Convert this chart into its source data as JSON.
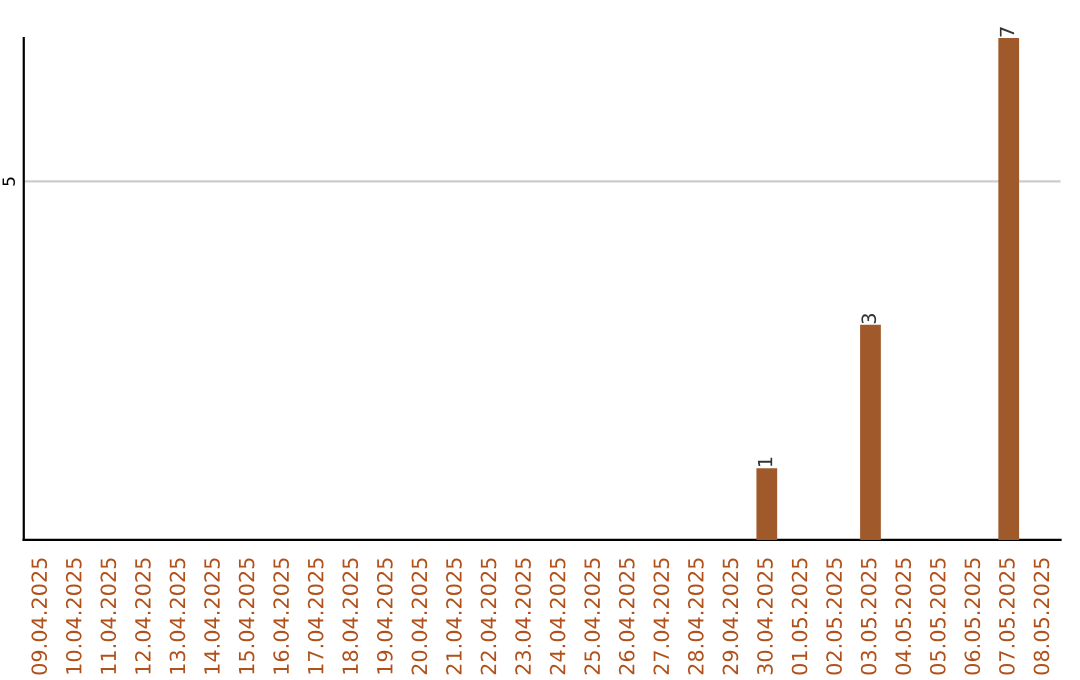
{
  "chart_data": {
    "type": "bar",
    "categories": [
      "09.04.2025",
      "10.04.2025",
      "11.04.2025",
      "12.04.2025",
      "13.04.2025",
      "14.04.2025",
      "15.04.2025",
      "16.04.2025",
      "17.04.2025",
      "18.04.2025",
      "19.04.2025",
      "20.04.2025",
      "21.04.2025",
      "22.04.2025",
      "23.04.2025",
      "24.04.2025",
      "25.04.2025",
      "26.04.2025",
      "27.04.2025",
      "28.04.2025",
      "29.04.2025",
      "30.04.2025",
      "01.05.2025",
      "02.05.2025",
      "03.05.2025",
      "04.05.2025",
      "05.05.2025",
      "06.05.2025",
      "07.05.2025",
      "08.05.2025"
    ],
    "values": [
      null,
      null,
      null,
      null,
      null,
      null,
      null,
      null,
      null,
      null,
      null,
      null,
      null,
      null,
      null,
      null,
      null,
      null,
      null,
      null,
      null,
      1,
      null,
      null,
      3,
      null,
      null,
      null,
      7,
      null
    ],
    "data_labels": true,
    "color": "#a0592a",
    "ylim": [
      0,
      7
    ],
    "yticks": [
      5
    ],
    "grid": "y"
  }
}
